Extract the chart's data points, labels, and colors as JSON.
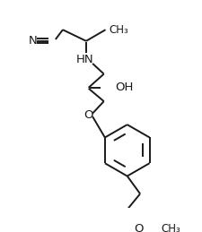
{
  "bg_color": "#ffffff",
  "line_color": "#1a1a1a",
  "text_color": "#1a1a1a",
  "font_size": 9.5,
  "bond_width": 1.4,
  "figsize": [
    2.26,
    2.59
  ],
  "dpi": 100,
  "xlim": [
    0,
    226
  ],
  "ylim": [
    0,
    259
  ]
}
